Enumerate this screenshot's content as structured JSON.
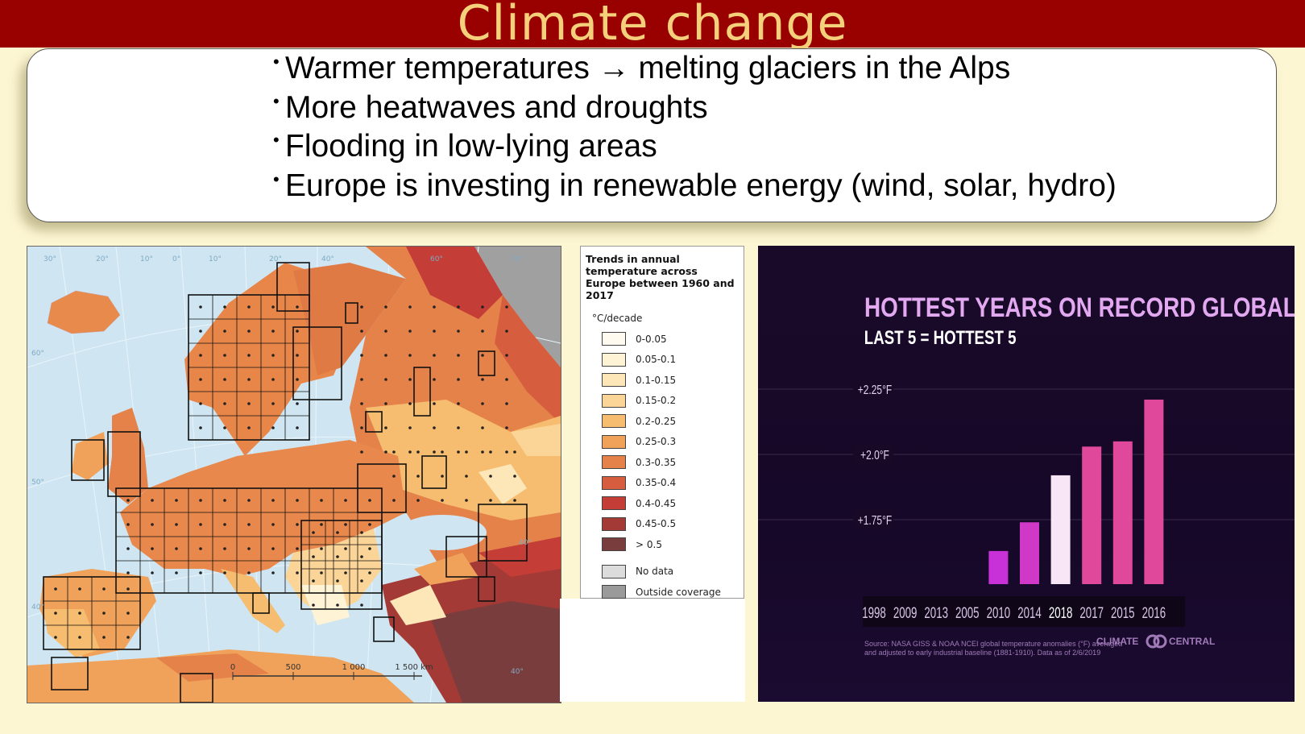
{
  "title": "Climate change",
  "bullets": [
    "Warmer temperatures → melting glaciers in the Alps",
    "More heatwaves and droughts",
    "Flooding in low-lying areas",
    "Europe is investing in renewable energy (wind, solar, hydro)"
  ],
  "map": {
    "scale_labels": [
      "0",
      "500",
      "1 000",
      "1 500 km"
    ],
    "graticule_labels": [
      "30°",
      "20°",
      "10°",
      "0°",
      "10°",
      "20°",
      "40°",
      "60°",
      "70°",
      "60°",
      "50°",
      "40°",
      "40°",
      "40°"
    ]
  },
  "legend": {
    "title": "Trends in annual temperature across Europe between 1960 and 2017",
    "unit": "°C/decade",
    "items": [
      {
        "label": "0-0.05",
        "color": "#fffaf0"
      },
      {
        "label": "0.05-0.1",
        "color": "#fff3d6"
      },
      {
        "label": "0.1-0.15",
        "color": "#fde6b8"
      },
      {
        "label": "0.15-0.2",
        "color": "#fbd497"
      },
      {
        "label": "0.2-0.25",
        "color": "#f6bd70"
      },
      {
        "label": "0.25-0.3",
        "color": "#f0a25a"
      },
      {
        "label": "0.3-0.35",
        "color": "#e4824a"
      },
      {
        "label": "0.35-0.4",
        "color": "#d65e3f"
      },
      {
        "label": "0.4-0.45",
        "color": "#c43d37"
      },
      {
        "label": "0.45-0.5",
        "color": "#a33a36"
      },
      {
        "label": "> 0.5",
        "color": "#7a3d3d"
      }
    ],
    "extra": [
      {
        "label": "No data",
        "color": "#dcdcdc"
      },
      {
        "label": "Outside coverage",
        "color": "#9a9a9a"
      }
    ]
  },
  "chart_data": {
    "type": "bar",
    "title": "HOTTEST YEARS ON RECORD GLOBALLY",
    "subtitle": "LAST 5 = HOTTEST 5",
    "categories": [
      "1998",
      "2009",
      "2013",
      "2005",
      "2010",
      "2014",
      "2018",
      "2017",
      "2015",
      "2016"
    ],
    "values": [
      1.42,
      1.44,
      1.47,
      1.5,
      1.63,
      1.74,
      1.92,
      2.03,
      2.05,
      2.21
    ],
    "highlight": "2018",
    "ylim": [
      1.25,
      2.4
    ],
    "ytick_values": [
      1.75,
      2.0,
      2.25
    ],
    "yticks": [
      "+1.75°F",
      "+2.0°F",
      "+2.25°F"
    ],
    "source": "Source: NASA GISS & NOAA NCEI global temperature anomalies (°F) averaged and adjusted to early industrial baseline (1881-1910). Data as of 2/6/2019",
    "brand_left": "CLIMATE",
    "brand_right": "CENTRAL",
    "colors": {
      "bar": "#c830d8",
      "bar_top": "#e0489c",
      "highlight": "#f8e6f6",
      "title": "#e2a8f0",
      "subtitle": "#ffffff"
    }
  }
}
